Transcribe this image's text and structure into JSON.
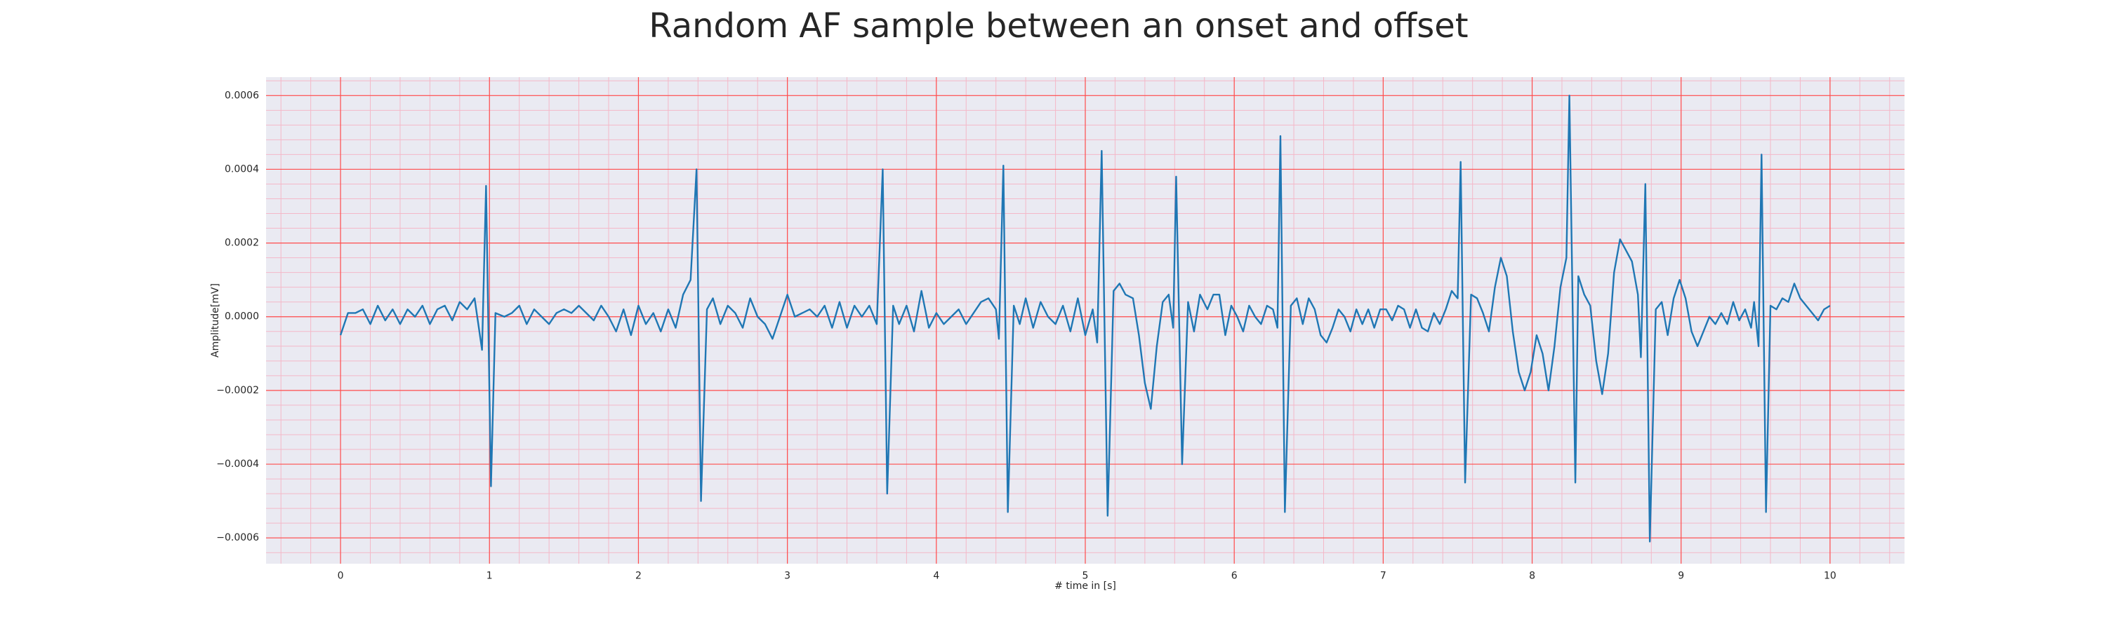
{
  "chart_data": {
    "type": "line",
    "title": "Random AF sample between an onset and offset",
    "x_label": "# time in [s]",
    "y_label": "Amplitude[mV]",
    "color": "#1f77b4",
    "grid": true,
    "minor_grid": true,
    "xlim": [
      -0.5,
      10.5
    ],
    "ylim": [
      -0.00067,
      0.00065
    ],
    "xticks": [
      0,
      1,
      2,
      3,
      4,
      5,
      6,
      7,
      8,
      9,
      10
    ],
    "yticks": [
      0.0006,
      0.0004,
      0.0002,
      {
        "value": 0,
        "label": "0.0000"
      },
      {
        "value": -0.0002,
        "label": "−0.0002"
      },
      {
        "value": -0.0004,
        "label": "−0.0004"
      },
      {
        "value": -0.0006,
        "label": "−0.0006"
      }
    ],
    "x": [
      0,
      0.05,
      0.1,
      0.15,
      0.2,
      0.25,
      0.3,
      0.35,
      0.4,
      0.45,
      0.5,
      0.55,
      0.6,
      0.65,
      0.7,
      0.75,
      0.8,
      0.85,
      0.9,
      0.95,
      0.977,
      1.01,
      1.04,
      1.1,
      1.15,
      1.2,
      1.25,
      1.3,
      1.35,
      1.4,
      1.45,
      1.5,
      1.55,
      1.6,
      1.65,
      1.7,
      1.75,
      1.8,
      1.85,
      1.9,
      1.95,
      2.0,
      2.05,
      2.1,
      2.15,
      2.2,
      2.25,
      2.3,
      2.35,
      2.39,
      2.42,
      2.46,
      2.5,
      2.55,
      2.6,
      2.65,
      2.7,
      2.75,
      2.8,
      2.85,
      2.9,
      2.95,
      3.0,
      3.05,
      3.1,
      3.15,
      3.2,
      3.25,
      3.3,
      3.35,
      3.4,
      3.45,
      3.5,
      3.55,
      3.6,
      3.64,
      3.67,
      3.71,
      3.75,
      3.8,
      3.85,
      3.9,
      3.95,
      4.0,
      4.05,
      4.1,
      4.15,
      4.2,
      4.25,
      4.3,
      4.35,
      4.4,
      4.42,
      4.45,
      4.48,
      4.52,
      4.56,
      4.6,
      4.65,
      4.7,
      4.75,
      4.8,
      4.85,
      4.9,
      4.95,
      5.0,
      5.05,
      5.08,
      5.11,
      5.15,
      5.19,
      5.23,
      5.27,
      5.32,
      5.36,
      5.4,
      5.44,
      5.48,
      5.52,
      5.56,
      5.59,
      5.61,
      5.65,
      5.69,
      5.73,
      5.77,
      5.82,
      5.86,
      5.9,
      5.94,
      5.98,
      6.02,
      6.06,
      6.1,
      6.14,
      6.18,
      6.22,
      6.26,
      6.29,
      6.31,
      6.34,
      6.38,
      6.42,
      6.46,
      6.5,
      6.54,
      6.58,
      6.62,
      6.66,
      6.7,
      6.74,
      6.78,
      6.82,
      6.86,
      6.9,
      6.94,
      6.98,
      7.02,
      7.06,
      7.1,
      7.14,
      7.18,
      7.22,
      7.26,
      7.3,
      7.34,
      7.38,
      7.42,
      7.46,
      7.5,
      7.52,
      7.55,
      7.59,
      7.63,
      7.67,
      7.71,
      7.75,
      7.79,
      7.83,
      7.87,
      7.91,
      7.95,
      7.99,
      8.03,
      8.07,
      8.11,
      8.15,
      8.19,
      8.23,
      8.25,
      8.29,
      8.31,
      8.35,
      8.39,
      8.43,
      8.47,
      8.51,
      8.55,
      8.59,
      8.63,
      8.67,
      8.71,
      8.73,
      8.76,
      8.79,
      8.83,
      8.87,
      8.91,
      8.95,
      8.99,
      9.03,
      9.07,
      9.11,
      9.15,
      9.19,
      9.23,
      9.27,
      9.31,
      9.35,
      9.39,
      9.43,
      9.47,
      9.49,
      9.52,
      9.54,
      9.57,
      9.6,
      9.64,
      9.68,
      9.72,
      9.76,
      9.8,
      9.84,
      9.88,
      9.92,
      9.96,
      10.0
    ],
    "values": [
      -5e-05,
      1e-05,
      1e-05,
      2e-05,
      -2e-05,
      3e-05,
      -1e-05,
      2e-05,
      -2e-05,
      2e-05,
      0,
      3e-05,
      -2e-05,
      2e-05,
      3e-05,
      -1e-05,
      4e-05,
      2e-05,
      5e-05,
      -9e-05,
      0.000355,
      -0.00046,
      1e-05,
      0,
      1e-05,
      3e-05,
      -2e-05,
      2e-05,
      0,
      -2e-05,
      1e-05,
      2e-05,
      1e-05,
      3e-05,
      1e-05,
      -1e-05,
      3e-05,
      0,
      -4e-05,
      2e-05,
      -5e-05,
      3e-05,
      -2e-05,
      1e-05,
      -4e-05,
      2e-05,
      -3e-05,
      6e-05,
      0.0001,
      0.0004,
      -0.0005,
      2e-05,
      5e-05,
      -2e-05,
      3e-05,
      1e-05,
      -3e-05,
      5e-05,
      0,
      -2e-05,
      -6e-05,
      0,
      6e-05,
      0,
      1e-05,
      2e-05,
      0,
      3e-05,
      -3e-05,
      4e-05,
      -3e-05,
      3e-05,
      0,
      3e-05,
      -2e-05,
      0.0004,
      -0.00048,
      3e-05,
      -2e-05,
      3e-05,
      -4e-05,
      7e-05,
      -3e-05,
      1e-05,
      -2e-05,
      0,
      2e-05,
      -2e-05,
      1e-05,
      4e-05,
      5e-05,
      2e-05,
      -6e-05,
      0.00041,
      -0.00053,
      3e-05,
      -2e-05,
      5e-05,
      -3e-05,
      4e-05,
      0,
      -2e-05,
      3e-05,
      -4e-05,
      5e-05,
      -5e-05,
      2e-05,
      -7e-05,
      0.00045,
      -0.00054,
      7e-05,
      9e-05,
      6e-05,
      5e-05,
      -5e-05,
      -0.00018,
      -0.00025,
      -8e-05,
      4e-05,
      6e-05,
      -3e-05,
      0.00038,
      -0.0004,
      4e-05,
      -4e-05,
      6e-05,
      2e-05,
      6e-05,
      6e-05,
      -5e-05,
      3e-05,
      0,
      -4e-05,
      3e-05,
      0,
      -2e-05,
      3e-05,
      2e-05,
      -3e-05,
      0.00049,
      -0.00053,
      3e-05,
      5e-05,
      -2e-05,
      5e-05,
      2e-05,
      -5e-05,
      -7e-05,
      -3e-05,
      2e-05,
      0,
      -4e-05,
      2e-05,
      -2e-05,
      2e-05,
      -3e-05,
      2e-05,
      2e-05,
      -1e-05,
      3e-05,
      2e-05,
      -3e-05,
      2e-05,
      -3e-05,
      -4e-05,
      1e-05,
      -2e-05,
      2e-05,
      7e-05,
      5e-05,
      0.00042,
      -0.00045,
      6e-05,
      5e-05,
      1e-05,
      -4e-05,
      8e-05,
      0.00016,
      0.00011,
      -4e-05,
      -0.00015,
      -0.0002,
      -0.00015,
      -5e-05,
      -0.0001,
      -0.0002,
      -8e-05,
      8e-05,
      0.00016,
      0.0006,
      -0.00045,
      0.00011,
      6e-05,
      3e-05,
      -0.00012,
      -0.00021,
      -0.0001,
      0.00012,
      0.00021,
      0.00018,
      0.00015,
      6e-05,
      -0.00011,
      0.00036,
      -0.00061,
      2e-05,
      4e-05,
      -5e-05,
      5e-05,
      0.0001,
      5e-05,
      -4e-05,
      -8e-05,
      -4e-05,
      0,
      -2e-05,
      1e-05,
      -2e-05,
      4e-05,
      -1e-05,
      2e-05,
      -3e-05,
      4e-05,
      -8e-05,
      0.00044,
      -0.00053,
      3e-05,
      2e-05,
      5e-05,
      4e-05,
      9e-05,
      5e-05,
      3e-05,
      1e-05,
      -1e-05,
      2e-05,
      3e-05
    ]
  }
}
